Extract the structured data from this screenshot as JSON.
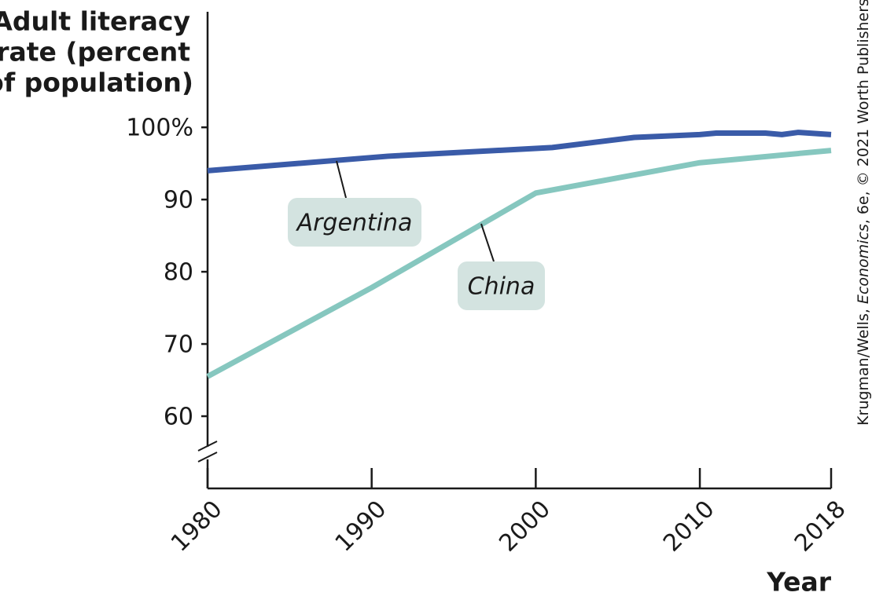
{
  "chart_data": {
    "type": "line",
    "y_label": [
      "Adult literacy",
      "rate (percent",
      "of population)"
    ],
    "x_label": "Year",
    "credit": [
      "Krugman/Wells, ",
      "Economics",
      ", 6e, © 2021 Worth Publishers"
    ],
    "xlim": [
      1980,
      2018
    ],
    "xticks": [
      1980,
      1990,
      2000,
      2010,
      2018
    ],
    "ylim": [
      50,
      116
    ],
    "yticks": [
      60,
      70,
      80,
      90,
      {
        "value": 100,
        "label": "100%"
      }
    ],
    "series": [
      {
        "name": "Argentina",
        "color": "#3a5ba8",
        "x": [
          1980,
          1991,
          2001,
          2006,
          2010,
          2011,
          2014,
          2015,
          2016,
          2018
        ],
        "values": [
          94,
          96,
          97.2,
          98.6,
          99,
          99.2,
          99.2,
          99,
          99.3,
          99
        ]
      },
      {
        "name": "China",
        "color": "#86c7bf",
        "x": [
          1980,
          1990,
          2000,
          2010,
          2018
        ],
        "values": [
          65.5,
          77.8,
          90.9,
          95.1,
          96.8
        ]
      }
    ]
  }
}
